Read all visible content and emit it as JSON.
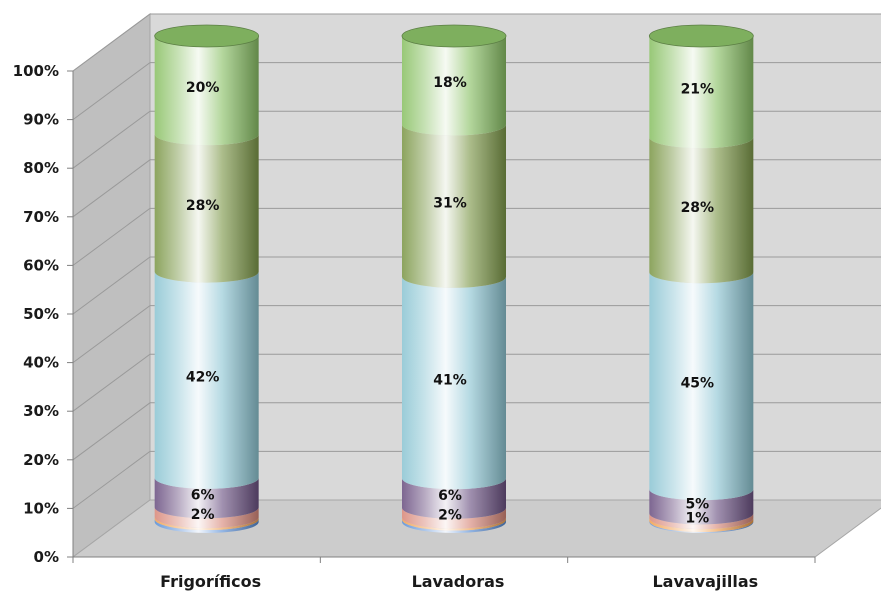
{
  "chart_data": {
    "type": "bar",
    "stacked": true,
    "percent_stacked": true,
    "style": "3d-cylinder",
    "categories": [
      "Frigoríficos",
      "Lavadoras",
      "Lavavajillas"
    ],
    "series": [
      {
        "color": "#5b8fd6",
        "values": [
          0.6,
          0.5,
          0.2
        ]
      },
      {
        "color": "#f0a050",
        "values": [
          0.4,
          0.4,
          0.6
        ]
      },
      {
        "color": "#d98a7c",
        "values": [
          2,
          2,
          1
        ]
      },
      {
        "color": "#6e5585",
        "values": [
          6,
          6,
          5
        ]
      },
      {
        "color": "#8fc6d4",
        "values": [
          42,
          41,
          45
        ]
      },
      {
        "color": "#7f9a4c",
        "values": [
          28,
          31,
          28
        ]
      },
      {
        "color": "#8cc268",
        "values": [
          20,
          18,
          21
        ]
      }
    ],
    "data_labels": [
      [
        "",
        "",
        "2%",
        "6%",
        "42%",
        "28%",
        "20%"
      ],
      [
        "",
        "",
        "2%",
        "6%",
        "41%",
        "31%",
        "18%"
      ],
      [
        "",
        "",
        "1%",
        "5%",
        "45%",
        "28%",
        "21%"
      ]
    ],
    "y_ticks": [
      "0%",
      "10%",
      "20%",
      "30%",
      "40%",
      "50%",
      "60%",
      "70%",
      "80%",
      "90%",
      "100%"
    ],
    "ylim": [
      0,
      100
    ],
    "grid": true,
    "legend": "none"
  }
}
